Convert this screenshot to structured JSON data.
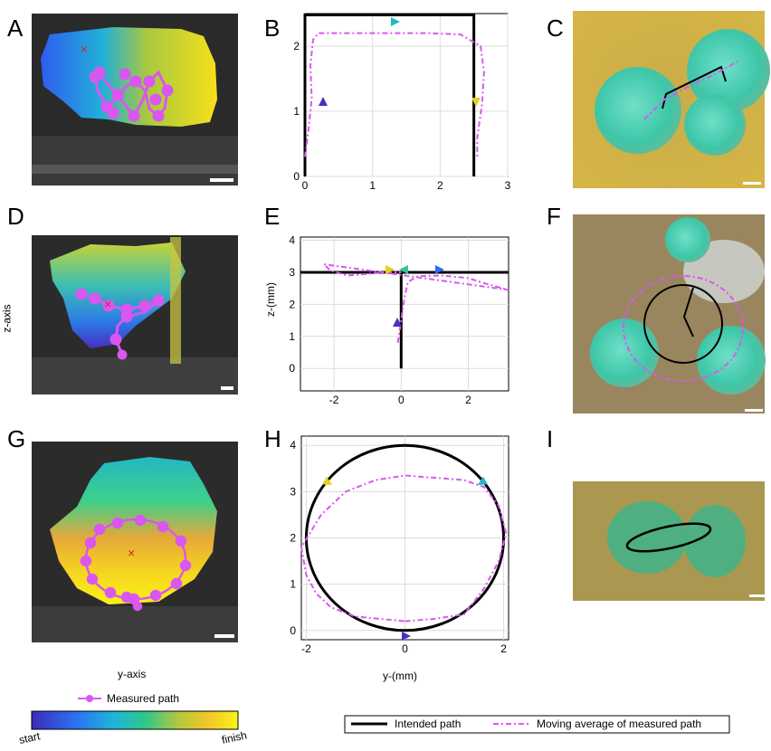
{
  "panels": {
    "A": "A",
    "B": "B",
    "C": "C",
    "D": "D",
    "E": "E",
    "F": "F",
    "G": "G",
    "H": "H",
    "I": "I"
  },
  "axes": {
    "z_axis_label": "z-axis",
    "y_axis_label": "y-axis",
    "E_ylabel": "z-(mm)",
    "H_xlabel": "y-(mm)"
  },
  "legend": {
    "measured_path": "Measured path",
    "intended_path": "Intended path",
    "moving_average": "Moving average of measured path",
    "colorbar_start": "start",
    "colorbar_finish": "finish"
  },
  "colors": {
    "intended": "#000000",
    "measured": "#d957f0",
    "cursor_x": "#e0201a"
  },
  "chart_data": [
    {
      "panel": "B",
      "type": "line",
      "xlim": [
        0,
        3
      ],
      "ylim": [
        0,
        2.5
      ],
      "xticks": [
        0,
        1,
        2,
        3
      ],
      "yticks": [
        0,
        1,
        2
      ],
      "grid": true,
      "series": [
        {
          "style": "intended",
          "x": [
            0,
            0,
            2.5,
            2.5
          ],
          "y": [
            0,
            2.48,
            2.48,
            0
          ]
        },
        {
          "style": "measured_avg",
          "x": [
            0.0,
            0.05,
            0.1,
            0.08,
            0.12,
            0.2,
            0.6,
            1.2,
            1.8,
            2.3,
            2.6,
            2.65,
            2.62,
            2.55,
            2.55
          ],
          "y": [
            0.3,
            0.7,
            1.2,
            1.7,
            2.1,
            2.2,
            2.2,
            2.2,
            2.2,
            2.18,
            2.0,
            1.6,
            1.1,
            0.6,
            0.3
          ]
        }
      ]
    },
    {
      "panel": "E",
      "type": "line",
      "xlim": [
        -3,
        3.2
      ],
      "ylim": [
        -0.7,
        4.1
      ],
      "xticks": [
        -2,
        0,
        2
      ],
      "yticks": [
        0,
        1,
        2,
        3,
        4
      ],
      "grid": true,
      "series": [
        {
          "style": "intended",
          "x": [
            0,
            0,
            0,
            -3,
            3.2
          ],
          "y": [
            0,
            3,
            3,
            3,
            3
          ]
        },
        {
          "style": "measured_avg",
          "x": [
            -0.1,
            0.0,
            0.1,
            0.2,
            0.5,
            1.2,
            2.0,
            2.6,
            3.2,
            -2.3,
            -2.1,
            -1.6,
            -1.0,
            -0.5,
            0.0
          ],
          "y": [
            0.8,
            1.5,
            2.2,
            2.7,
            2.88,
            2.9,
            2.82,
            2.62,
            2.45,
            3.25,
            3.05,
            2.9,
            2.95,
            3.0,
            3.0
          ]
        }
      ]
    },
    {
      "panel": "H",
      "type": "line",
      "xlim": [
        -2.1,
        2.1
      ],
      "ylim": [
        -0.2,
        4.2
      ],
      "xticks": [
        -2,
        0,
        2
      ],
      "yticks": [
        0,
        1,
        2,
        3,
        4
      ],
      "grid": true,
      "xlabel": "y-(mm)",
      "series": [
        {
          "style": "intended_circle",
          "center": [
            0,
            2
          ],
          "radius": 2
        },
        {
          "style": "measured_avg",
          "x": [
            0.0,
            0.6,
            1.2,
            1.6,
            1.9,
            2.05,
            1.9,
            1.6,
            1.2,
            0.6,
            0.0,
            -0.6,
            -1.2,
            -1.7,
            -2.1,
            -2.0,
            -1.8,
            -1.5,
            -1.0,
            -0.5,
            0.0
          ],
          "y": [
            0.2,
            0.25,
            0.35,
            0.9,
            1.5,
            2.1,
            2.7,
            3.1,
            3.25,
            3.3,
            3.35,
            3.25,
            3.0,
            2.5,
            1.8,
            1.2,
            0.8,
            0.5,
            0.3,
            0.25,
            0.2
          ]
        }
      ]
    }
  ]
}
